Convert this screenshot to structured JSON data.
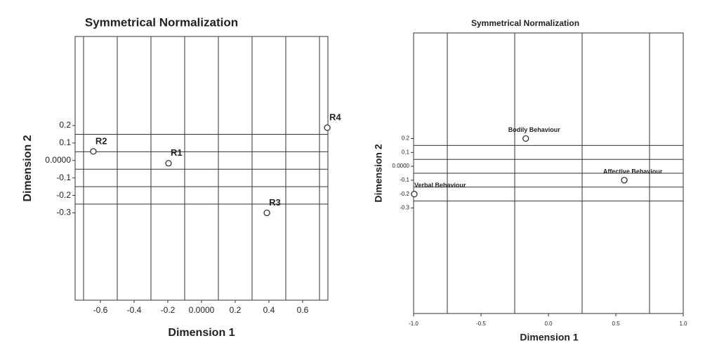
{
  "chart_data": [
    {
      "type": "scatter",
      "title": "Symmetrical Normalization",
      "x_label": "Dimension 1",
      "y_label": "Dimension 2",
      "xlim": [
        -0.75,
        0.75
      ],
      "ylim": [
        -0.8,
        0.71
      ],
      "xticks": [
        -0.6,
        -0.4,
        -0.2,
        {
          "value": 0,
          "label": "0.0000"
        },
        0.2,
        0.4,
        0.6
      ],
      "yticks": [
        0.2,
        0.1,
        {
          "value": 0,
          "label": "0.0000"
        },
        -0.1,
        -0.2,
        -0.3
      ],
      "xgrid": [
        -0.7,
        -0.5,
        -0.3,
        -0.1,
        0.1,
        0.3,
        0.5,
        0.7
      ],
      "ygrid": [
        0.15,
        0.05,
        -0.05,
        -0.15,
        -0.25
      ],
      "labels": [
        "R2",
        "R1",
        "R4",
        "R3"
      ],
      "x": [
        -0.642,
        -0.196,
        0.746,
        0.388
      ],
      "values": [
        0.052,
        -0.016,
        0.188,
        -0.3
      ],
      "color": "#333333"
    },
    {
      "type": "scatter",
      "title": "Symmetrical Normalization",
      "x_label": "Dimension 1",
      "y_label": "Dimension 2",
      "xlim": [
        -1.0,
        1.0
      ],
      "ylim": [
        -1.06,
        0.96
      ],
      "xticks": [
        {
          "value": -1,
          "label": "-1.0"
        },
        -0.5,
        {
          "value": 0,
          "label": "0.0"
        },
        0.5,
        {
          "value": 1,
          "label": "1.0"
        }
      ],
      "yticks": [
        0.2,
        0.1,
        {
          "value": 0,
          "label": "0.0000"
        },
        -0.1,
        -0.2,
        -0.3
      ],
      "xgrid": [
        -0.75,
        -0.25,
        0.25,
        0.75
      ],
      "ygrid": [
        0.15,
        0.05,
        -0.05,
        -0.15,
        -0.25
      ],
      "labels": [
        "Bodily Behaviour",
        "Affective Behaviour",
        "Verbal Behaviour"
      ],
      "x": [
        -0.168,
        0.563,
        -0.995
      ],
      "values": [
        0.2,
        -0.1,
        -0.2
      ],
      "color": "#333333"
    }
  ]
}
